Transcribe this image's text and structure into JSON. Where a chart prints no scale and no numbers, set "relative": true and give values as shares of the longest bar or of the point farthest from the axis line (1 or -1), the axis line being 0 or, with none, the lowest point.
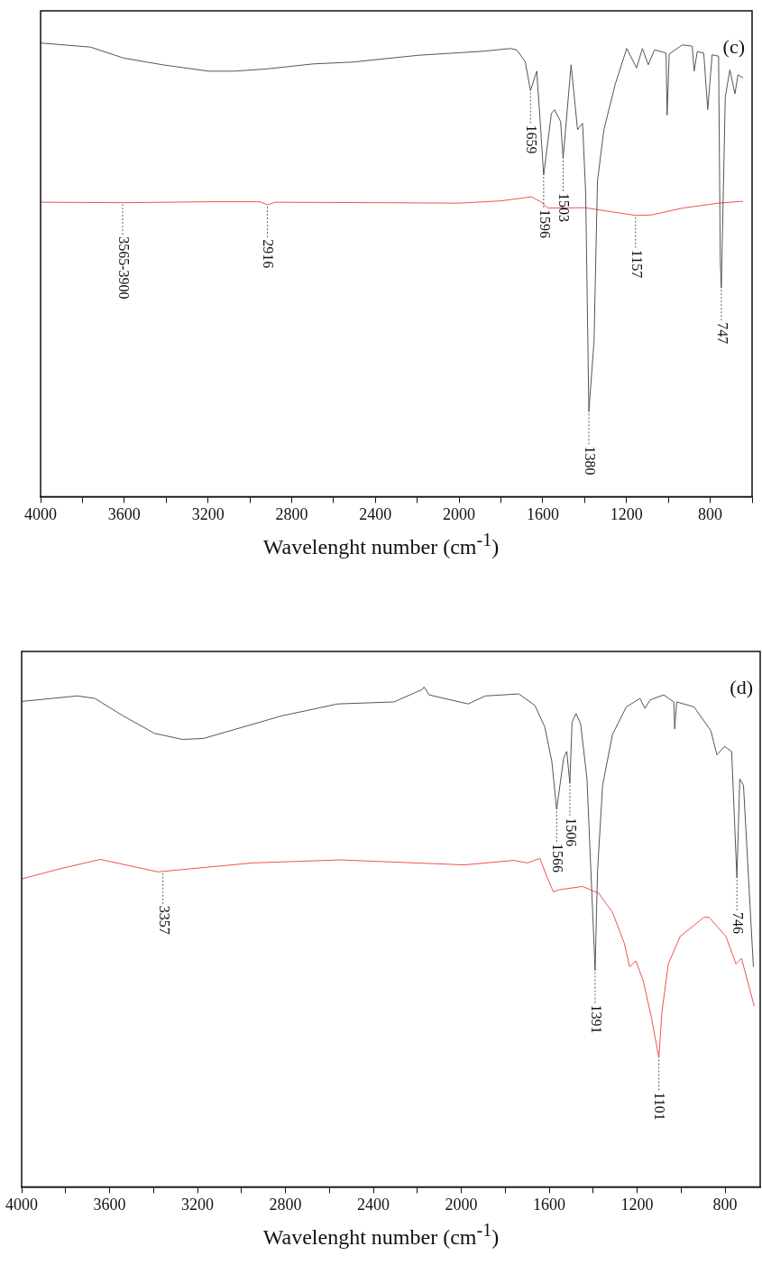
{
  "chart_data": [
    {
      "type": "line",
      "relative": true,
      "xlabel": "Wavelenght number (cm$^{-1}$)",
      "xlim": [
        4000,
        600
      ],
      "xticks": [
        4000,
        {
          "value": 3800,
          "label": null
        },
        3600,
        {
          "value": 3400,
          "label": null
        },
        3200,
        {
          "value": 3000,
          "label": null
        },
        2800,
        {
          "value": 2600,
          "label": null
        },
        2400,
        {
          "value": 2200,
          "label": null
        },
        2000,
        {
          "value": 1800,
          "label": null
        },
        1600,
        {
          "value": 1400,
          "label": null
        },
        1200,
        {
          "value": 1000,
          "label": null
        },
        800,
        {
          "value": 600,
          "label": null
        }
      ],
      "grid": false,
      "legend": false,
      "marker": "none",
      "line_style": "solid",
      "series": [
        {
          "color": "#555555",
          "x": [
            4000,
            3761,
            3605,
            3417,
            3197,
            3072,
            2917,
            2697,
            2509,
            2195,
            1882,
            1756,
            1725,
            1684,
            1659,
            1629,
            1610,
            1596,
            1559,
            1544,
            1515,
            1503,
            1465,
            1434,
            1410,
            1395,
            1380,
            1355,
            1339,
            1308,
            1254,
            1199,
            1152,
            1124,
            1096,
            1066,
            1011,
            1006,
            996,
            933,
            886,
            877,
            862,
            831,
            812,
            791,
            760,
            752,
            747,
            728,
            706,
            682,
            667,
            643
          ],
          "values": [
            1,
            0.991,
            0.967,
            0.952,
            0.938,
            0.938,
            0.943,
            0.954,
            0.958,
            0.973,
            0.982,
            0.988,
            0.985,
            0.959,
            0.895,
            0.938,
            0.809,
            0.709,
            0.845,
            0.853,
            0.827,
            0.745,
            0.952,
            0.809,
            0.823,
            0.667,
            0.187,
            0.344,
            0.695,
            0.809,
            0.909,
            0.988,
            0.945,
            0.988,
            0.952,
            0.985,
            0.978,
            0.841,
            0.976,
            0.996,
            0.993,
            0.938,
            0.981,
            0.978,
            0.853,
            0.974,
            0.971,
            0.523,
            0.46,
            0.881,
            0.941,
            0.888,
            0.93,
            0.923
          ]
        },
        {
          "color": "#f05050",
          "x": [
            4000,
            3600,
            3200,
            2950,
            2916,
            2880,
            2400,
            2000,
            1800,
            1700,
            1654,
            1610,
            1575,
            1400,
            1300,
            1157,
            1080,
            933,
            760,
            643
          ],
          "values": [
            0.649,
            0.648,
            0.65,
            0.65,
            0.643,
            0.649,
            0.648,
            0.647,
            0.652,
            0.658,
            0.661,
            0.65,
            0.636,
            0.637,
            0.63,
            0.62,
            0.621,
            0.636,
            0.647,
            0.651
          ]
        }
      ],
      "annotations": [
        "(c)",
        {
          "text": "3565-3900",
          "x": 3608,
          "y": 0.649
        },
        {
          "text": "2916",
          "x": 2916,
          "y": 0.643
        },
        {
          "text": "1659",
          "x": 1659,
          "y": 0.895
        },
        {
          "text": "1596",
          "x": 1596,
          "y": 0.709
        },
        {
          "text": "1503",
          "x": 1503,
          "y": 0.745
        },
        {
          "text": "1380",
          "x": 1380,
          "y": 0.187
        },
        {
          "text": "1157",
          "x": 1157,
          "y": 0.62
        },
        {
          "text": "747",
          "x": 747,
          "y": 0.46
        }
      ]
    },
    {
      "type": "line",
      "relative": true,
      "xlabel": "Wavelenght number (cm$^{-1}$)",
      "xlim": [
        4000,
        640
      ],
      "xticks": [
        4000,
        {
          "value": 3800,
          "label": null
        },
        3600,
        {
          "value": 3400,
          "label": null
        },
        3200,
        {
          "value": 3000,
          "label": null
        },
        2800,
        {
          "value": 2600,
          "label": null
        },
        2400,
        {
          "value": 2200,
          "label": null
        },
        2000,
        {
          "value": 1800,
          "label": null
        },
        1600,
        {
          "value": 1400,
          "label": null
        },
        1200,
        {
          "value": 1000,
          "label": null
        },
        800
      ],
      "grid": false,
      "legend": false,
      "marker": "none",
      "line_style": "solid",
      "series": [
        {
          "color": "#555555",
          "x": [
            4000,
            3746,
            3667,
            3538,
            3395,
            3268,
            3172,
            2818,
            2562,
            2306,
            2177,
            2169,
            2146,
            1969,
            1890,
            1738,
            1665,
            1620,
            1588,
            1566,
            1534,
            1520,
            1506,
            1496,
            1478,
            1457,
            1428,
            1391,
            1380,
            1357,
            1312,
            1249,
            1187,
            1164,
            1141,
            1079,
            1033,
            1029,
            1020,
            941,
            864,
            837,
            802,
            770,
            746,
            733,
            716,
            671
          ],
          "values": [
            0.971,
            0.982,
            0.977,
            0.942,
            0.907,
            0.895,
            0.897,
            0.942,
            0.966,
            0.97,
            0.995,
            1,
            0.984,
            0.966,
            0.982,
            0.986,
            0.963,
            0.92,
            0.851,
            0.755,
            0.858,
            0.871,
            0.807,
            0.929,
            0.947,
            0.926,
            0.816,
            0.433,
            0.632,
            0.803,
            0.905,
            0.96,
            0.977,
            0.957,
            0.974,
            0.984,
            0.97,
            0.916,
            0.97,
            0.96,
            0.912,
            0.864,
            0.881,
            0.871,
            0.618,
            0.816,
            0.803,
            0.44
          ]
        },
        {
          "color": "#f05050",
          "x": [
            4000,
            3828,
            3642,
            3380,
            3357,
            2947,
            2548,
            1986,
            1761,
            1699,
            1642,
            1610,
            1581,
            1557,
            1449,
            1374,
            1312,
            1258,
            1234,
            1206,
            1172,
            1134,
            1101,
            1087,
            1058,
            1004,
            896,
            872,
            796,
            750,
            725,
            667
          ],
          "values": [
            0.616,
            0.636,
            0.655,
            0.63,
            0.631,
            0.648,
            0.654,
            0.644,
            0.653,
            0.648,
            0.657,
            0.62,
            0.59,
            0.594,
            0.601,
            0.587,
            0.549,
            0.487,
            0.44,
            0.452,
            0.412,
            0.337,
            0.258,
            0.35,
            0.446,
            0.501,
            0.539,
            0.539,
            0.501,
            0.446,
            0.457,
            0.361
          ]
        }
      ],
      "annotations": [
        "(d)",
        {
          "text": "3357",
          "x": 3357,
          "y": 0.631
        },
        {
          "text": "1566",
          "x": 1566,
          "y": 0.755
        },
        {
          "text": "1506",
          "x": 1506,
          "y": 0.807
        },
        {
          "text": "1391",
          "x": 1391,
          "y": 0.433
        },
        {
          "text": "1101",
          "x": 1101,
          "y": 0.258
        },
        {
          "text": "746",
          "x": 746,
          "y": 0.618
        }
      ]
    }
  ]
}
